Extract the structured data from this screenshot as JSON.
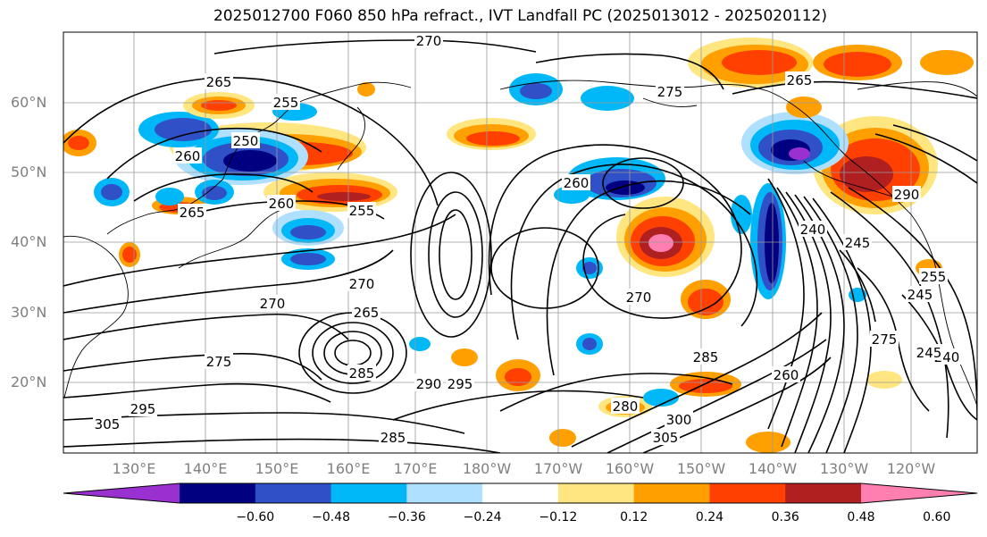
{
  "title": "2025012700 F060 850 hPa refract., IVT Landfall PC (2025013012 - 2025020112)",
  "lat_labels": [
    "60°N",
    "50°N",
    "40°N",
    "30°N",
    "20°N"
  ],
  "lon_labels": [
    "130°E",
    "140°E",
    "150°E",
    "160°E",
    "170°E",
    "180°W",
    "170°W",
    "160°W",
    "150°W",
    "140°W",
    "130°W",
    "120°W"
  ],
  "contour_labels": [
    "270",
    "265",
    "255",
    "250",
    "260",
    "265",
    "260",
    "255",
    "270",
    "270",
    "275",
    "265",
    "285",
    "295",
    "305",
    "295",
    "285",
    "290",
    "295",
    "270",
    "240",
    "245",
    "255",
    "245",
    "260",
    "265",
    "275",
    "280",
    "285",
    "300",
    "305",
    "290",
    "240",
    "245",
    "260",
    "275"
  ],
  "colorbar": {
    "ticks": [
      "−0.60",
      "−0.48",
      "−0.36",
      "−0.24",
      "−0.12",
      "0.12",
      "0.24",
      "0.36",
      "0.48",
      "0.60"
    ],
    "colors": [
      "#9b30d0",
      "#000080",
      "#3050c8",
      "#00b8f8",
      "#b0e0ff",
      "#ffffff",
      "#ffe680",
      "#ffa000",
      "#ff4000",
      "#b02020",
      "#ff80b0"
    ],
    "pal": {
      "n5": "#9b30d0",
      "n4": "#000080",
      "n3": "#3050c8",
      "n2": "#00b8f8",
      "n1": "#b0e0ff",
      "p1": "#ffe680",
      "p2": "#ffa000",
      "p3": "#ff4000",
      "p4": "#b02020",
      "p5": "#ff80b0"
    }
  }
}
